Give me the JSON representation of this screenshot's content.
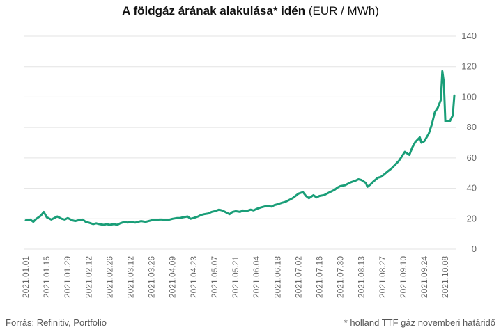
{
  "title": {
    "bold": "A földgáz árának alakulása* idén",
    "unit": " (EUR / MWh)"
  },
  "footer": {
    "source": "Forrás: Refinitiv, Portfolio",
    "note": "* holland TTF gáz novemberi határidő"
  },
  "colors": {
    "line": "#1a9e78",
    "grid": "#e3e3e3",
    "text": "#666666"
  },
  "chart_data": {
    "type": "line",
    "title": "A földgáz árának alakulása* idén (EUR / MWh)",
    "xlabel": "",
    "ylabel": "",
    "ylim": [
      0,
      140
    ],
    "yticks": [
      0,
      20,
      40,
      60,
      80,
      100,
      120,
      140
    ],
    "y_axis_position": "right",
    "grid": true,
    "xticks": [
      "2021.01.01",
      "2021.01.15",
      "2021.01.29",
      "2021.02.12",
      "2021.02.26",
      "2021.03.12",
      "2021.03.26",
      "2021.04.09",
      "2021.04.23",
      "2021.05.07",
      "2021.05.21",
      "2021.06.04",
      "2021.06.18",
      "2021.07.02",
      "2021.07.16",
      "2021.07.30",
      "2021.08.13",
      "2021.08.27",
      "2021.09.10",
      "2021.09.24",
      "2021.10.08"
    ],
    "series": [
      {
        "points": [
          [
            "2021-01-01",
            19.0
          ],
          [
            "2021-01-04",
            19.5
          ],
          [
            "2021-01-06",
            18.0
          ],
          [
            "2021-01-08",
            20.0
          ],
          [
            "2021-01-11",
            22.0
          ],
          [
            "2021-01-13",
            24.5
          ],
          [
            "2021-01-15",
            21.0
          ],
          [
            "2021-01-18",
            19.5
          ],
          [
            "2021-01-20",
            20.5
          ],
          [
            "2021-01-22",
            21.5
          ],
          [
            "2021-01-25",
            20.0
          ],
          [
            "2021-01-27",
            19.5
          ],
          [
            "2021-01-29",
            20.5
          ],
          [
            "2021-02-01",
            19.0
          ],
          [
            "2021-02-03",
            18.5
          ],
          [
            "2021-02-05",
            19.0
          ],
          [
            "2021-02-08",
            19.5
          ],
          [
            "2021-02-10",
            18.0
          ],
          [
            "2021-02-12",
            17.5
          ],
          [
            "2021-02-15",
            16.5
          ],
          [
            "2021-02-17",
            17.0
          ],
          [
            "2021-02-19",
            16.5
          ],
          [
            "2021-02-22",
            16.0
          ],
          [
            "2021-02-24",
            16.5
          ],
          [
            "2021-02-26",
            16.0
          ],
          [
            "2021-03-01",
            16.5
          ],
          [
            "2021-03-03",
            16.0
          ],
          [
            "2021-03-05",
            17.0
          ],
          [
            "2021-03-08",
            18.0
          ],
          [
            "2021-03-10",
            17.5
          ],
          [
            "2021-03-12",
            18.0
          ],
          [
            "2021-03-15",
            17.5
          ],
          [
            "2021-03-17",
            18.0
          ],
          [
            "2021-03-19",
            18.5
          ],
          [
            "2021-03-22",
            18.0
          ],
          [
            "2021-03-24",
            18.5
          ],
          [
            "2021-03-26",
            19.0
          ],
          [
            "2021-03-29",
            19.0
          ],
          [
            "2021-03-31",
            19.5
          ],
          [
            "2021-04-02",
            19.5
          ],
          [
            "2021-04-05",
            19.0
          ],
          [
            "2021-04-07",
            19.5
          ],
          [
            "2021-04-09",
            20.0
          ],
          [
            "2021-04-12",
            20.5
          ],
          [
            "2021-04-14",
            20.5
          ],
          [
            "2021-04-16",
            21.0
          ],
          [
            "2021-04-19",
            21.5
          ],
          [
            "2021-04-21",
            20.0
          ],
          [
            "2021-04-23",
            20.5
          ],
          [
            "2021-04-26",
            21.5
          ],
          [
            "2021-04-28",
            22.5
          ],
          [
            "2021-04-30",
            23.0
          ],
          [
            "2021-05-03",
            23.5
          ],
          [
            "2021-05-05",
            24.5
          ],
          [
            "2021-05-07",
            25.0
          ],
          [
            "2021-05-10",
            26.0
          ],
          [
            "2021-05-12",
            25.5
          ],
          [
            "2021-05-14",
            24.5
          ],
          [
            "2021-05-17",
            23.0
          ],
          [
            "2021-05-19",
            24.5
          ],
          [
            "2021-05-21",
            25.0
          ],
          [
            "2021-05-24",
            24.5
          ],
          [
            "2021-05-26",
            25.5
          ],
          [
            "2021-05-28",
            25.0
          ],
          [
            "2021-05-31",
            26.0
          ],
          [
            "2021-06-02",
            25.5
          ],
          [
            "2021-06-04",
            26.5
          ],
          [
            "2021-06-07",
            27.5
          ],
          [
            "2021-06-09",
            28.0
          ],
          [
            "2021-06-11",
            28.5
          ],
          [
            "2021-06-14",
            28.0
          ],
          [
            "2021-06-16",
            29.0
          ],
          [
            "2021-06-18",
            29.5
          ],
          [
            "2021-06-21",
            30.5
          ],
          [
            "2021-06-23",
            31.0
          ],
          [
            "2021-06-25",
            32.0
          ],
          [
            "2021-06-28",
            33.5
          ],
          [
            "2021-06-30",
            35.0
          ],
          [
            "2021-07-02",
            36.5
          ],
          [
            "2021-07-05",
            37.5
          ],
          [
            "2021-07-07",
            35.0
          ],
          [
            "2021-07-09",
            33.5
          ],
          [
            "2021-07-12",
            35.5
          ],
          [
            "2021-07-14",
            34.0
          ],
          [
            "2021-07-16",
            35.0
          ],
          [
            "2021-07-19",
            35.5
          ],
          [
            "2021-07-21",
            36.5
          ],
          [
            "2021-07-23",
            37.5
          ],
          [
            "2021-07-26",
            39.0
          ],
          [
            "2021-07-28",
            40.5
          ],
          [
            "2021-07-30",
            41.5
          ],
          [
            "2021-08-02",
            42.0
          ],
          [
            "2021-08-04",
            43.0
          ],
          [
            "2021-08-06",
            44.0
          ],
          [
            "2021-08-09",
            45.0
          ],
          [
            "2021-08-11",
            46.0
          ],
          [
            "2021-08-13",
            45.5
          ],
          [
            "2021-08-16",
            43.5
          ],
          [
            "2021-08-17",
            41.0
          ],
          [
            "2021-08-19",
            42.5
          ],
          [
            "2021-08-21",
            44.5
          ],
          [
            "2021-08-24",
            47.0
          ],
          [
            "2021-08-26",
            47.5
          ],
          [
            "2021-08-28",
            49.0
          ],
          [
            "2021-08-31",
            51.5
          ],
          [
            "2021-09-02",
            53.0
          ],
          [
            "2021-09-04",
            55.0
          ],
          [
            "2021-09-07",
            58.0
          ],
          [
            "2021-09-09",
            61.0
          ],
          [
            "2021-09-11",
            64.0
          ],
          [
            "2021-09-14",
            62.0
          ],
          [
            "2021-09-16",
            67.0
          ],
          [
            "2021-09-18",
            70.5
          ],
          [
            "2021-09-21",
            73.5
          ],
          [
            "2021-09-22",
            70.0
          ],
          [
            "2021-09-24",
            71.0
          ],
          [
            "2021-09-27",
            76.0
          ],
          [
            "2021-09-29",
            82.0
          ],
          [
            "2021-10-01",
            90.0
          ],
          [
            "2021-10-03",
            93.0
          ],
          [
            "2021-10-05",
            98.0
          ],
          [
            "2021-10-06",
            117.0
          ],
          [
            "2021-10-07",
            110.0
          ],
          [
            "2021-10-08",
            84.0
          ],
          [
            "2021-10-11",
            84.0
          ],
          [
            "2021-10-13",
            88.0
          ],
          [
            "2021-10-14",
            101.0
          ]
        ]
      }
    ]
  }
}
